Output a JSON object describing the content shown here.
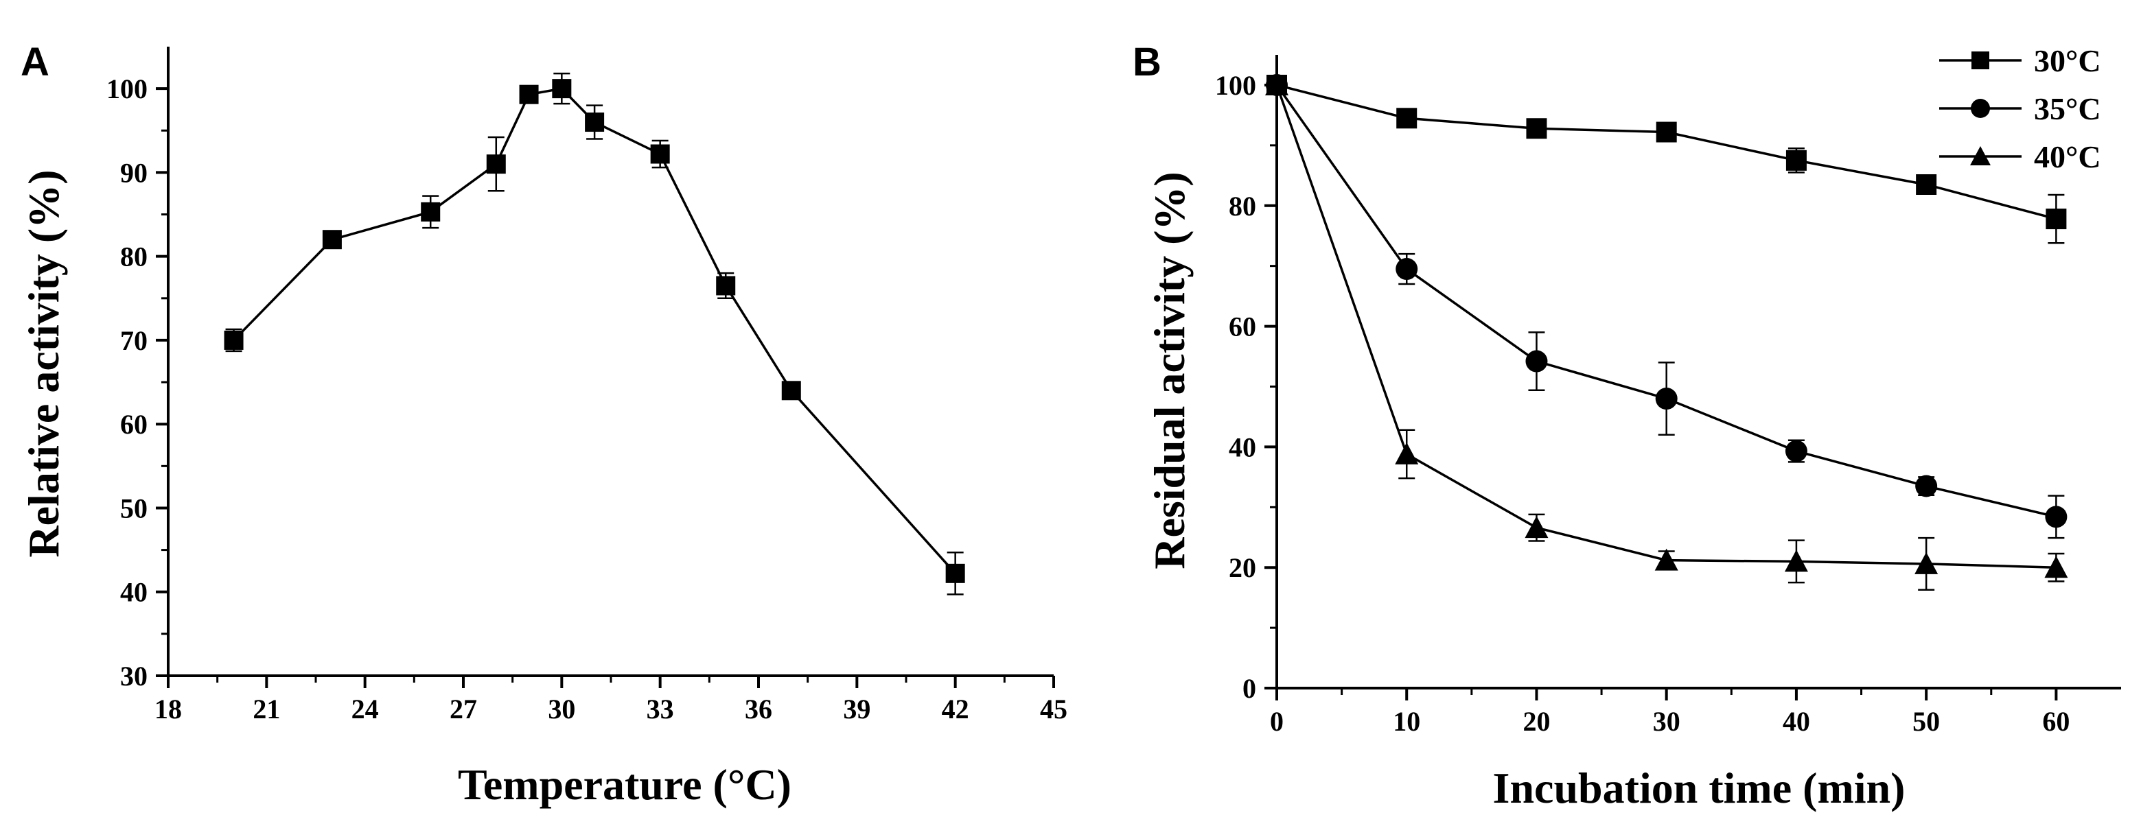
{
  "chart_data": [
    {
      "type": "line",
      "panel_label": "A",
      "title": "",
      "xlabel": "Temperature (°C)",
      "ylabel": "Relative activity (%)",
      "xlim": [
        18,
        45
      ],
      "ylim": [
        30,
        105
      ],
      "xticks": [
        18,
        21,
        24,
        27,
        30,
        33,
        36,
        39,
        42,
        45
      ],
      "yticks": [
        30,
        40,
        50,
        60,
        70,
        80,
        90,
        100
      ],
      "grid": false,
      "series": [
        {
          "name": "Relative activity",
          "marker": "square",
          "x": [
            20,
            23,
            26,
            28,
            29,
            30,
            31,
            33,
            35,
            37,
            42
          ],
          "y": [
            70.0,
            82.0,
            85.3,
            91.0,
            99.3,
            100.0,
            96.0,
            92.2,
            76.5,
            64.0,
            42.2
          ],
          "err": [
            1.3,
            0.8,
            1.9,
            3.2,
            0.8,
            1.8,
            2.0,
            1.6,
            1.5,
            0.8,
            2.5
          ]
        }
      ]
    },
    {
      "type": "line",
      "panel_label": "B",
      "title": "",
      "xlabel": "Incubation time (min)",
      "ylabel": "Residual activity (%)",
      "xlim": [
        0,
        65
      ],
      "ylim": [
        0,
        105
      ],
      "xticks": [
        0,
        10,
        20,
        30,
        40,
        50,
        60
      ],
      "yticks": [
        0,
        20,
        40,
        60,
        80,
        100
      ],
      "grid": false,
      "legend_position": "top-right",
      "series": [
        {
          "name": "30°C",
          "marker": "square",
          "x": [
            0,
            10,
            20,
            30,
            40,
            50,
            60
          ],
          "y": [
            100,
            94.5,
            92.8,
            92.2,
            87.5,
            83.5,
            77.8
          ],
          "err": [
            1.0,
            1.5,
            1.0,
            1.2,
            2.0,
            1.0,
            4.0
          ]
        },
        {
          "name": "35°C",
          "marker": "circle",
          "x": [
            0,
            10,
            20,
            30,
            40,
            50,
            60
          ],
          "y": [
            100,
            69.5,
            54.2,
            48.0,
            39.3,
            33.5,
            28.4
          ],
          "err": [
            1.0,
            2.5,
            4.8,
            6.0,
            1.8,
            1.5,
            3.5
          ]
        },
        {
          "name": "40°C",
          "marker": "triangle",
          "x": [
            0,
            10,
            20,
            30,
            40,
            50,
            60
          ],
          "y": [
            100,
            38.8,
            26.6,
            21.2,
            21.0,
            20.6,
            20.0
          ],
          "err": [
            1.0,
            4.0,
            2.2,
            1.5,
            3.5,
            4.3,
            2.3
          ]
        }
      ]
    }
  ]
}
